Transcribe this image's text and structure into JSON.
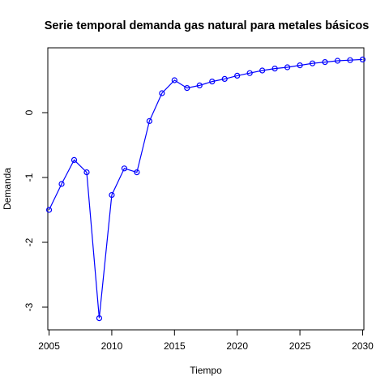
{
  "chart_data": {
    "type": "line",
    "title": "Serie temporal demanda gas natural para metales básicos",
    "xlabel": "Tiempo",
    "ylabel": "Demanda",
    "xlim": [
      2004.9,
      2030.1
    ],
    "ylim": [
      -3.35,
      1.0
    ],
    "x_ticks": [
      2005,
      2010,
      2015,
      2020,
      2025,
      2030
    ],
    "y_ticks": [
      -3,
      -2,
      -1,
      0
    ],
    "series": [
      {
        "color": "#0000ff",
        "marker": "open-circle",
        "x": [
          2005,
          2006,
          2007,
          2008,
          2009,
          2010,
          2011,
          2012,
          2013,
          2014,
          2015,
          2016,
          2017,
          2018,
          2019,
          2020,
          2021,
          2022,
          2023,
          2024,
          2025,
          2026,
          2027,
          2028,
          2029,
          2030
        ],
        "y": [
          -1.5,
          -1.1,
          -0.73,
          -0.92,
          -3.17,
          -1.27,
          -0.86,
          -0.92,
          -0.13,
          0.3,
          0.5,
          0.38,
          0.42,
          0.48,
          0.52,
          0.57,
          0.61,
          0.65,
          0.68,
          0.7,
          0.73,
          0.76,
          0.78,
          0.8,
          0.81,
          0.82
        ]
      }
    ],
    "grid": false,
    "legend": "none"
  }
}
